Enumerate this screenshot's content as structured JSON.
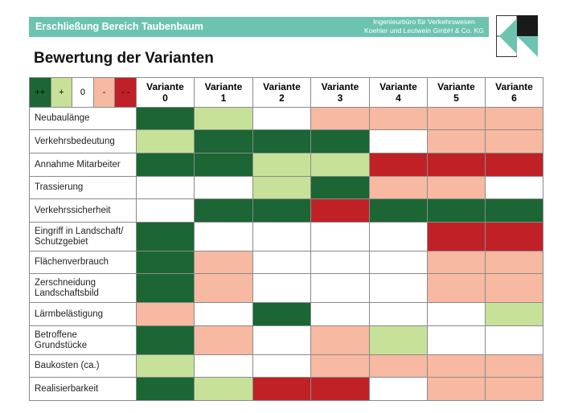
{
  "header": {
    "title": "Erschließung Bereich Taubenbaum",
    "company_line1": "Ingenieurbüro für Verkehrswesen",
    "company_line2": "Koehler und Leutwein GmbH & Co. KG"
  },
  "page_title": "Bewertung der Varianten",
  "colors": {
    "header_bg": "#6cc4b0",
    "++": "#1b6634",
    "+": "#c7e199",
    "0": "#ffffff",
    "-": "#f7b9a1",
    "--": "#bf2127"
  },
  "legend": [
    "++",
    "+",
    "0",
    "-",
    "- -"
  ],
  "variants": [
    {
      "label": "Variante",
      "number": "0"
    },
    {
      "label": "Variante",
      "number": "1"
    },
    {
      "label": "Variante",
      "number": "2"
    },
    {
      "label": "Variante",
      "number": "3"
    },
    {
      "label": "Variante",
      "number": "4"
    },
    {
      "label": "Variante",
      "number": "5"
    },
    {
      "label": "Variante",
      "number": "6"
    }
  ],
  "criteria": [
    {
      "line1": "Neubaulänge",
      "line2": "",
      "ratings": [
        "++",
        "+",
        "0",
        "-",
        "-",
        "-",
        "-"
      ]
    },
    {
      "line1": "Verkehrsbedeutung",
      "line2": "",
      "ratings": [
        "+",
        "++",
        "++",
        "++",
        "0",
        "-",
        "-"
      ]
    },
    {
      "line1": "Annahme Mitarbeiter",
      "line2": "",
      "ratings": [
        "++",
        "++",
        "+",
        "+",
        "--",
        "--",
        "--"
      ]
    },
    {
      "line1": "Trassierung",
      "line2": "",
      "ratings": [
        "0",
        "0",
        "+",
        "++",
        "-",
        "-",
        "0"
      ]
    },
    {
      "line1": "Verkehrssicherheit",
      "line2": "",
      "ratings": [
        "0",
        "++",
        "++",
        "--",
        "++",
        "++",
        "++"
      ]
    },
    {
      "line1": "Eingriff in Landschaft/",
      "line2": "Schutzgebiet",
      "ratings": [
        "++",
        "0",
        "0",
        "0",
        "0",
        "--",
        "--"
      ]
    },
    {
      "line1": "Flächenverbrauch",
      "line2": "",
      "ratings": [
        "++",
        "-",
        "0",
        "0",
        "0",
        "-",
        "-"
      ]
    },
    {
      "line1": "Zerschneidung",
      "line2": "Landschaftsbild",
      "ratings": [
        "++",
        "-",
        "0",
        "0",
        "0",
        "-",
        "-"
      ]
    },
    {
      "line1": "Lärmbelästigung",
      "line2": "",
      "ratings": [
        "-",
        "0",
        "++",
        "0",
        "0",
        "0",
        "+"
      ]
    },
    {
      "line1": "Betroffene",
      "line2": "Grundstücke",
      "ratings": [
        "++",
        "-",
        "0",
        "-",
        "+",
        "0",
        "0"
      ]
    },
    {
      "line1": "Baukosten (ca.)",
      "line2": "",
      "ratings": [
        "+",
        "0",
        "0",
        "-",
        "-",
        "-",
        "-"
      ]
    },
    {
      "line1": "Realisierbarkeit",
      "line2": "",
      "ratings": [
        "++",
        "+",
        "--",
        "--",
        "0",
        "-",
        "-"
      ]
    }
  ]
}
